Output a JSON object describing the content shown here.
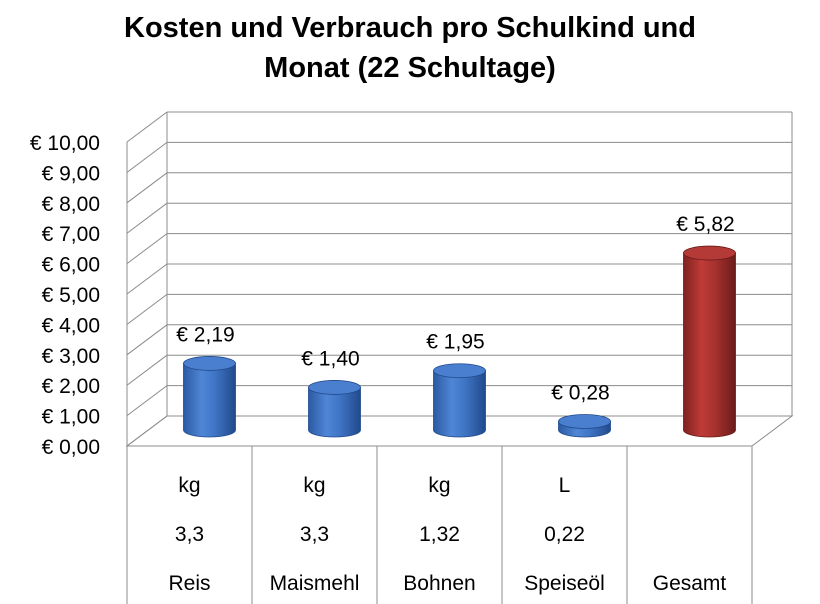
{
  "title_lines": [
    "Kosten und Verbrauch pro Schulkind und",
    "Monat (22 Schultage)"
  ],
  "chart_data": {
    "type": "bar",
    "style": "3d-cylinder",
    "title": "Kosten und Verbrauch pro Schulkind und Monat (22 Schultage)",
    "categories": [
      "Reis",
      "Maismehl",
      "Bohnen",
      "Speiseöl",
      "Gesamt"
    ],
    "units": [
      "kg",
      "kg",
      "kg",
      "L",
      ""
    ],
    "quantities": [
      "3,3",
      "3,3",
      "1,32",
      "0,22",
      ""
    ],
    "values": [
      2.19,
      1.4,
      1.95,
      0.28,
      5.82
    ],
    "data_labels": [
      "€ 2,19",
      "€ 1,40",
      "€ 1,95",
      "€ 0,28",
      "€ 5,82"
    ],
    "bar_colors": [
      "#3f75c4",
      "#3f75c4",
      "#3f75c4",
      "#3f75c4",
      "#a8322f"
    ],
    "ylim": [
      0,
      10
    ],
    "y_ticks": [
      "€ 0,00",
      "€ 1,00",
      "€ 2,00",
      "€ 3,00",
      "€ 4,00",
      "€ 5,00",
      "€ 6,00",
      "€ 7,00",
      "€ 8,00",
      "€ 9,00",
      "€ 10,00"
    ],
    "grid": true,
    "legend": "none"
  }
}
